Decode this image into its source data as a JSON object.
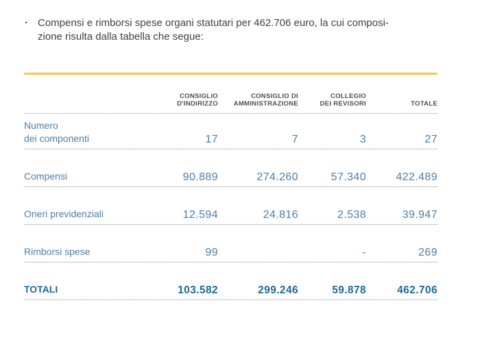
{
  "intro": {
    "bullet": "·",
    "text_line1": "Compensi e rimborsi spese organi statutari per 462.706 euro, la cui composi-",
    "text_line2": "zione risulta dalla tabella che segue:"
  },
  "table": {
    "colors": {
      "accent_line": "#F2C84B",
      "body_text": "#4D7DA6",
      "total_text": "#1E6795",
      "header_text": "#4D4D4D",
      "divider_dots": "#8F8F8F",
      "intro_text": "#3F3F3F"
    },
    "headers": [
      {
        "line1": "CONSIGLIO",
        "line2": "D'INDIRIZZO"
      },
      {
        "line1": "CONSIGLIO DI",
        "line2": "AMMINISTRAZIONE"
      },
      {
        "line1": "COLLEGIO",
        "line2": "DEI REVISORI"
      },
      {
        "line1": "",
        "line2": "TOTALE"
      }
    ],
    "rows": [
      {
        "label_line1": "Numero",
        "label_line2": "dei componenti",
        "values": [
          "17",
          "7",
          "3",
          "27"
        ]
      },
      {
        "label_line1": "Compensi",
        "values": [
          "90.889",
          "274.260",
          "57.340",
          "422.489"
        ]
      },
      {
        "label_line1": "Oneri previdenziali",
        "values": [
          "12.594",
          "24.816",
          "2.538",
          "39.947"
        ]
      },
      {
        "label_line1": "Rimborsi spese",
        "values": [
          "99",
          "",
          "-",
          "269"
        ]
      }
    ],
    "total": {
      "label": "TOTALI",
      "values": [
        "103.582",
        "299.246",
        "59.878",
        "462.706"
      ]
    }
  }
}
